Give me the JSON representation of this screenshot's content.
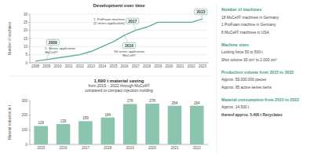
{
  "chart_data": [
    {
      "type": "line",
      "title": "Development over time",
      "y_label": "Number of machines",
      "categories": [
        "2008",
        "2009",
        "2010",
        "2011",
        "2012",
        "2013",
        "2014",
        "2015",
        "2016",
        "2017",
        "2018",
        "2019",
        "2020",
        "2021",
        "2022",
        "2023"
      ],
      "values": [
        1,
        2,
        3,
        4,
        5,
        7,
        10,
        13,
        17,
        20,
        22,
        25,
        25,
        25,
        25,
        27
      ],
      "color": "#5fae95",
      "ylim": [
        0,
        30
      ],
      "yticks": [
        0,
        5,
        10,
        15,
        20,
        25,
        30
      ],
      "grid": true,
      "marker": "none",
      "annotations": [
        {
          "label": "2009",
          "text": [
            "1. Series application",
            "MuCell®"
          ]
        },
        {
          "label": "2016",
          "text": [
            "34 series application",
            "MuCell®"
          ]
        },
        {
          "label": "2017",
          "text": [
            "1. ProFoam machine",
            "(2 series application)"
          ]
        },
        {
          "label": "2023",
          "text": []
        }
      ]
    },
    {
      "type": "bar",
      "title": "1.690 t material saving",
      "subtitle": [
        "from 2015 – 2022 through MuCell®",
        "compared to compact injection molding"
      ],
      "y_label": "Material reduction in t",
      "categories": [
        "2015",
        "2016",
        "2017",
        "2018",
        "2019",
        "2020",
        "2021",
        "2022"
      ],
      "values": [
        126,
        139,
        159,
        184,
        276,
        278,
        264,
        264
      ],
      "color": "#8cc5ae",
      "ylim": [
        0,
        300
      ],
      "yticks": [
        0,
        100,
        200,
        300
      ],
      "grid": false,
      "data_labels": true
    }
  ],
  "info_panel": {
    "sections": [
      {
        "heading": "Number of machines",
        "lines": [
          "18 MuCell® machines in Germany",
          "1 ProFoam machine in Germany",
          "8 MuCell® machines in USA"
        ]
      },
      {
        "heading": "Machine sizes",
        "lines": [
          "Locking force 50 to 500 t",
          "Shot volume 30 cm³ to 2.000 cm³"
        ]
      },
      {
        "heading": "Production volume from 2015 to 2022",
        "lines": [
          "Approx. 59.000.000 pieces",
          "Approx. 95 active series items"
        ]
      },
      {
        "heading": "Material consumption from 2015 to 2022",
        "lines": [
          "Approx. 14.500 t",
          "thereof approx. 5.400 t Recyclates"
        ]
      }
    ]
  }
}
